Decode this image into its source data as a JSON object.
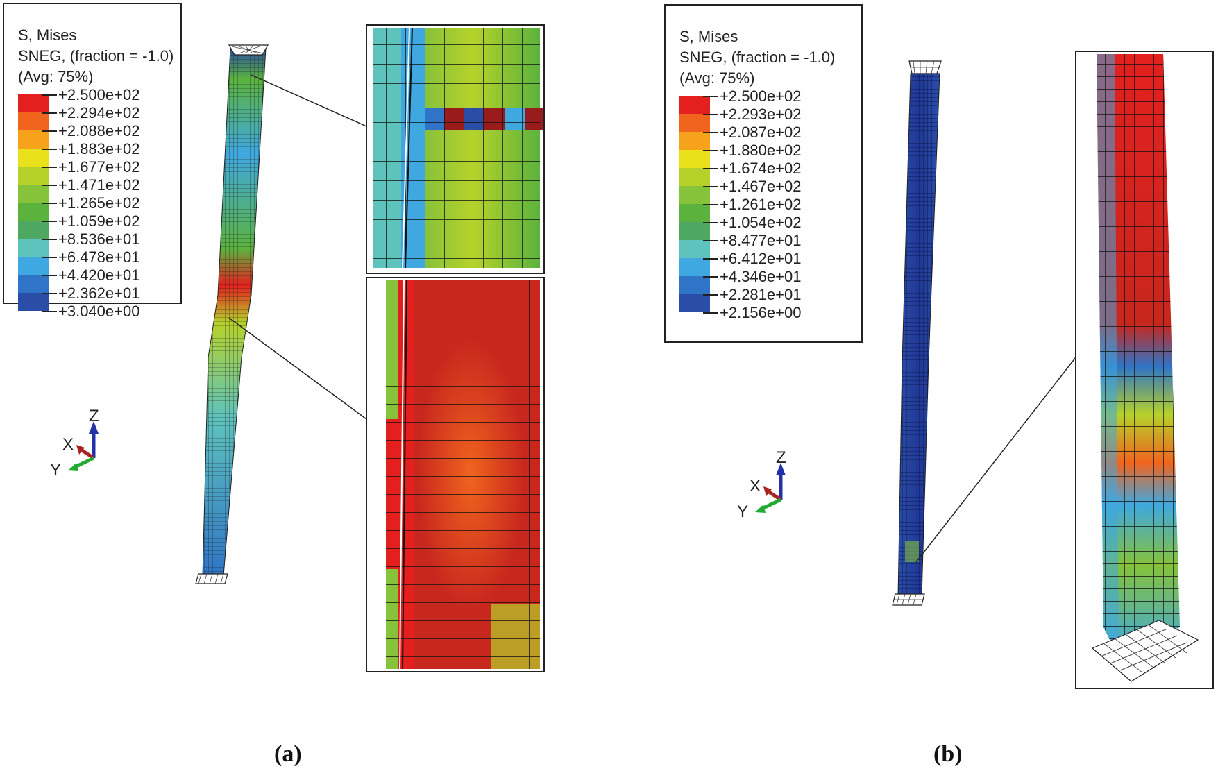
{
  "panel_a": {
    "legend": {
      "title_line1": "S, Mises",
      "title_line2": "SNEG, (fraction = -1.0)",
      "title_line3": "(Avg: 75%)",
      "values": [
        "+2.500e+02",
        "+2.294e+02",
        "+2.088e+02",
        "+1.883e+02",
        "+1.677e+02",
        "+1.471e+02",
        "+1.265e+02",
        "+1.059e+02",
        "+8.536e+01",
        "+6.478e+01",
        "+4.420e+01",
        "+2.362e+01",
        "+3.040e+00"
      ]
    },
    "axes": {
      "z": "Z",
      "x": "X",
      "y": "Y"
    },
    "caption": "(a)"
  },
  "panel_b": {
    "legend": {
      "title_line1": "S, Mises",
      "title_line2": "SNEG, (fraction = -1.0)",
      "title_line3": "(Avg: 75%)",
      "values": [
        "+2.500e+02",
        "+2.293e+02",
        "+2.087e+02",
        "+1.880e+02",
        "+1.674e+02",
        "+1.467e+02",
        "+1.261e+02",
        "+1.054e+02",
        "+8.477e+01",
        "+6.412e+01",
        "+4.346e+01",
        "+2.281e+01",
        "+2.156e+00"
      ]
    },
    "axes": {
      "z": "Z",
      "x": "X",
      "y": "Y"
    },
    "caption": "(b)"
  },
  "colors": {
    "contour_scale": [
      "#e3201e",
      "#f0641e",
      "#f6a21a",
      "#e8e11b",
      "#b6d22a",
      "#86c23a",
      "#5bb33e",
      "#4ea861",
      "#5ec3bd",
      "#3fa8e0",
      "#2f74c6",
      "#2a4ea8",
      "#1f3896"
    ],
    "axis_z": "#2233aa",
    "axis_x": "#aa2222",
    "axis_y": "#22aa33"
  }
}
